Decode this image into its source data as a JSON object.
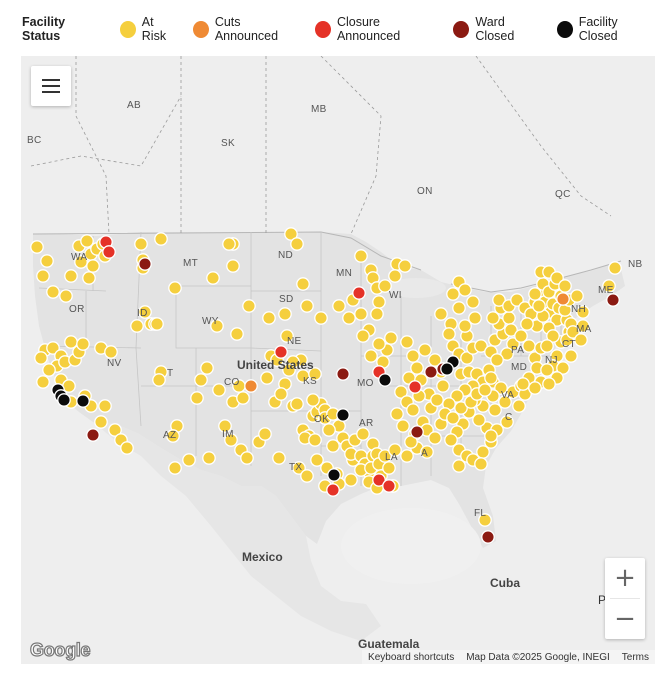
{
  "legend": {
    "title": "Facility Status",
    "items": [
      {
        "label": "At Risk",
        "color": "#f5cf3e"
      },
      {
        "label": "Cuts Announced",
        "color": "#ef8a34"
      },
      {
        "label": "Closure Announced",
        "color": "#e53227"
      },
      {
        "label": "Ward Closed",
        "color": "#8b1a12"
      },
      {
        "label": "Facility Closed",
        "color": "#0b0b0b"
      }
    ]
  },
  "map": {
    "labels": {
      "bc": "BC",
      "ab": "AB",
      "sk": "SK",
      "mb": "MB",
      "on": "ON",
      "qc": "QC",
      "nb": "NB",
      "wa": "WA",
      "or": "OR",
      "id": "ID",
      "mt": "MT",
      "wy": "WY",
      "nv": "NV",
      "ut": "T",
      "az": "AZ",
      "co": "CO",
      "nm": "IM",
      "nd": "ND",
      "sd": "SD",
      "ne": "NE",
      "ks": "KS",
      "ok": "OK",
      "tx": "TX",
      "mn": "MN",
      "wi": "WI",
      "mo": "MO",
      "ar": "AR",
      "la": "LA",
      "me": "ME",
      "nh": "NH",
      "ma": "MA",
      "ct": "CT",
      "pa": "PA",
      "nj": "NJ",
      "md": "MD",
      "va": "VA",
      "nc": "C",
      "fl": "FL",
      "al": "A",
      "usa": "United States",
      "mexico": "Mexico",
      "cuba": "Cuba",
      "guatemala": "Guatemala",
      "puerto": "P"
    },
    "google_logo": "Google",
    "attribution": {
      "shortcuts": "Keyboard shortcuts",
      "data": "Map Data ©2025 Google, INEGI",
      "terms": "Terms"
    },
    "zoom_in": "+",
    "zoom_out": "−"
  }
}
